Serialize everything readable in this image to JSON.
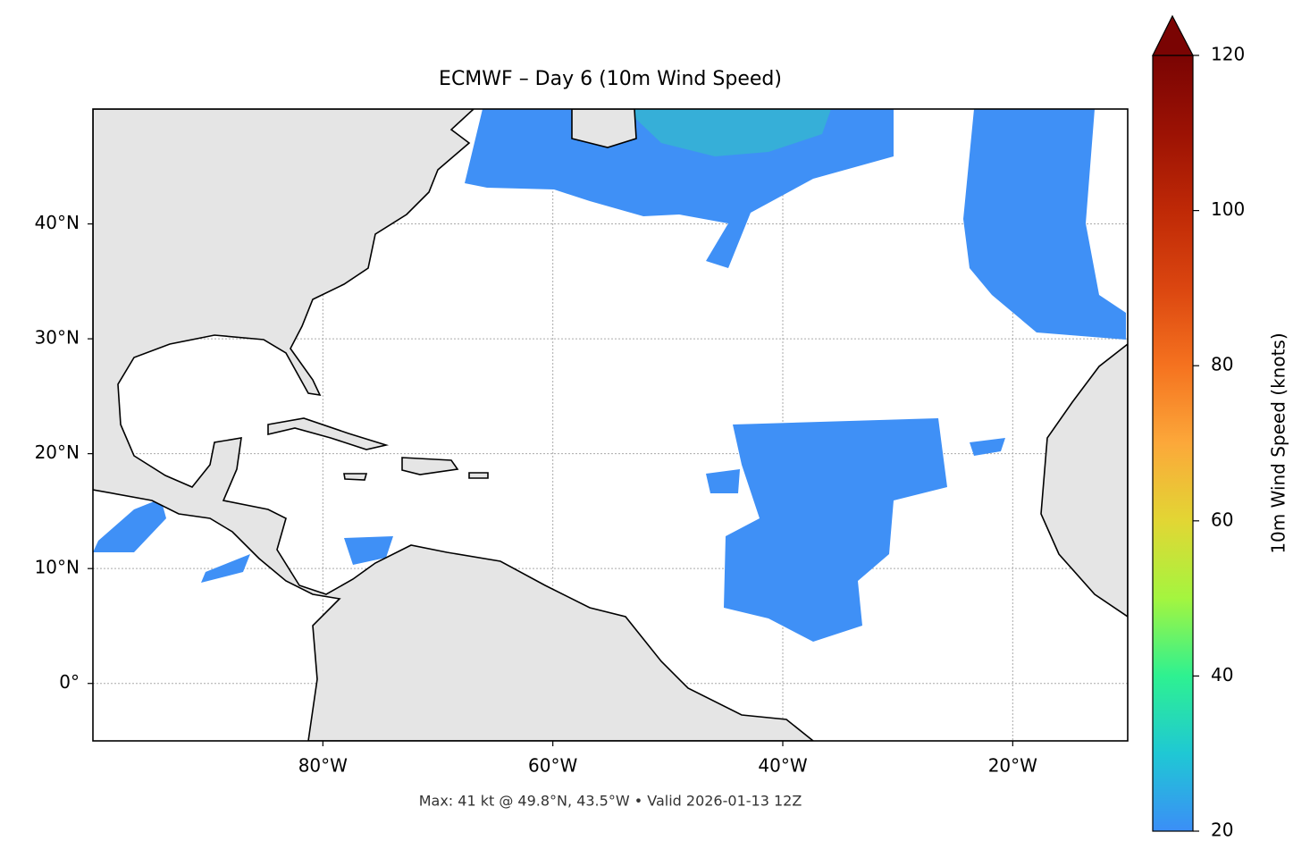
{
  "map": {
    "title": "ECMWF – Day 6 (10m Wind Speed)",
    "footer": "Max: 41 kt @ 49.8°N, 43.5°W • Valid 2026-01-13 12Z",
    "xlim": [
      -100,
      -10
    ],
    "ylim": [
      -5,
      50
    ],
    "xticks": [
      {
        "value": -80,
        "label": "80°W"
      },
      {
        "value": -60,
        "label": "60°W"
      },
      {
        "value": -40,
        "label": "40°W"
      },
      {
        "value": -20,
        "label": "20°W"
      }
    ],
    "yticks": [
      {
        "value": 0,
        "label": "0°"
      },
      {
        "value": 10,
        "label": "10°N"
      },
      {
        "value": 20,
        "label": "20°N"
      },
      {
        "value": 30,
        "label": "30°N"
      },
      {
        "value": 40,
        "label": "40°N"
      }
    ],
    "grid": true,
    "colorbar": {
      "label": "10m Wind Speed (knots)",
      "lim": [
        20,
        120
      ],
      "ticks": [
        20,
        40,
        60,
        80,
        100,
        120
      ],
      "extend": "max"
    }
  }
}
